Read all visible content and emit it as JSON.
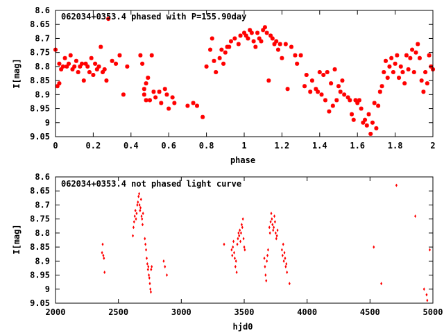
{
  "chart_data": [
    {
      "type": "scatter",
      "title": "062034+0353.4 phased with P=155.90day",
      "xlabel": "phase",
      "ylabel": "I[mag]",
      "xlim": [
        0,
        2
      ],
      "ylim": [
        8.6,
        9.05
      ],
      "y_inverted": true,
      "grid": false,
      "marker_color": "#ff0000",
      "marker": "star",
      "x_ticks": [
        0,
        0.2,
        0.4,
        0.6,
        0.8,
        1,
        1.2,
        1.4,
        1.6,
        1.8,
        2
      ],
      "x_tick_labels": [
        "0",
        "0.2",
        "0.4",
        "0.6",
        "0.8",
        "1",
        "1.2",
        "1.4",
        "1.6",
        "1.8",
        "2"
      ],
      "y_ticks": [
        8.6,
        8.65,
        8.7,
        8.75,
        8.8,
        8.85,
        8.9,
        8.95,
        9,
        9.05
      ],
      "y_tick_labels": [
        "8.6",
        "8.65",
        "8.7",
        "8.75",
        "8.8",
        "8.85",
        "8.9",
        "8.95",
        "9",
        "9.05"
      ],
      "points": [
        [
          0.0,
          8.74
        ],
        [
          0.02,
          8.79
        ],
        [
          0.01,
          8.87
        ],
        [
          0.02,
          8.86
        ],
        [
          0.03,
          8.81
        ],
        [
          0.04,
          8.8
        ],
        [
          0.05,
          8.77
        ],
        [
          0.06,
          8.8
        ],
        [
          0.07,
          8.79
        ],
        [
          0.08,
          8.76
        ],
        [
          0.09,
          8.81
        ],
        [
          0.1,
          8.8
        ],
        [
          0.11,
          8.78
        ],
        [
          0.12,
          8.82
        ],
        [
          0.13,
          8.8
        ],
        [
          0.14,
          8.79
        ],
        [
          0.15,
          8.85
        ],
        [
          0.16,
          8.79
        ],
        [
          0.17,
          8.8
        ],
        [
          0.18,
          8.82
        ],
        [
          0.19,
          8.77
        ],
        [
          0.2,
          8.83
        ],
        [
          0.21,
          8.79
        ],
        [
          0.22,
          8.81
        ],
        [
          0.23,
          8.8
        ],
        [
          0.24,
          8.73
        ],
        [
          0.25,
          8.82
        ],
        [
          0.26,
          8.81
        ],
        [
          0.27,
          8.85
        ],
        [
          0.28,
          8.63
        ],
        [
          0.3,
          8.78
        ],
        [
          0.32,
          8.79
        ],
        [
          0.34,
          8.76
        ],
        [
          0.36,
          8.9
        ],
        [
          0.38,
          8.8
        ],
        [
          0.45,
          8.76
        ],
        [
          0.46,
          8.79
        ],
        [
          0.47,
          8.88
        ],
        [
          0.47,
          8.9
        ],
        [
          0.48,
          8.86
        ],
        [
          0.49,
          8.84
        ],
        [
          0.5,
          8.92
        ],
        [
          0.48,
          8.92
        ],
        [
          0.51,
          8.76
        ],
        [
          0.52,
          8.89
        ],
        [
          0.53,
          8.91
        ],
        [
          0.55,
          8.89
        ],
        [
          0.56,
          8.93
        ],
        [
          0.58,
          8.88
        ],
        [
          0.59,
          8.9
        ],
        [
          0.6,
          8.95
        ],
        [
          0.62,
          8.91
        ],
        [
          0.63,
          8.93
        ],
        [
          0.7,
          8.94
        ],
        [
          0.73,
          8.93
        ],
        [
          0.75,
          8.94
        ],
        [
          0.78,
          8.98
        ],
        [
          0.8,
          8.8
        ],
        [
          0.82,
          8.74
        ],
        [
          0.83,
          8.7
        ],
        [
          0.84,
          8.78
        ],
        [
          0.85,
          8.82
        ],
        [
          0.87,
          8.77
        ],
        [
          0.88,
          8.74
        ],
        [
          0.89,
          8.79
        ],
        [
          0.9,
          8.75
        ],
        [
          0.91,
          8.73
        ],
        [
          0.92,
          8.73
        ],
        [
          0.93,
          8.71
        ],
        [
          0.95,
          8.7
        ],
        [
          0.97,
          8.72
        ],
        [
          0.98,
          8.69
        ],
        [
          1.0,
          8.68
        ],
        [
          1.01,
          8.69
        ],
        [
          1.02,
          8.7
        ],
        [
          1.03,
          8.67
        ],
        [
          1.04,
          8.68
        ],
        [
          1.05,
          8.71
        ],
        [
          1.06,
          8.73
        ],
        [
          1.07,
          8.68
        ],
        [
          1.08,
          8.7
        ],
        [
          1.09,
          8.71
        ],
        [
          1.1,
          8.67
        ],
        [
          1.11,
          8.66
        ],
        [
          1.12,
          8.68
        ],
        [
          1.13,
          8.85
        ],
        [
          1.14,
          8.69
        ],
        [
          1.15,
          8.7
        ],
        [
          1.16,
          8.72
        ],
        [
          1.17,
          8.71
        ],
        [
          1.18,
          8.74
        ],
        [
          1.19,
          8.72
        ],
        [
          1.2,
          8.77
        ],
        [
          1.22,
          8.72
        ],
        [
          1.23,
          8.88
        ],
        [
          1.25,
          8.73
        ],
        [
          1.27,
          8.76
        ],
        [
          1.28,
          8.79
        ],
        [
          1.3,
          8.76
        ],
        [
          1.32,
          8.87
        ],
        [
          1.33,
          8.83
        ],
        [
          1.35,
          8.89
        ],
        [
          1.36,
          8.85
        ],
        [
          1.38,
          8.88
        ],
        [
          1.39,
          8.89
        ],
        [
          1.4,
          8.82
        ],
        [
          1.41,
          8.9
        ],
        [
          1.42,
          8.83
        ],
        [
          1.43,
          8.92
        ],
        [
          1.44,
          8.82
        ],
        [
          1.45,
          8.96
        ],
        [
          1.46,
          8.86
        ],
        [
          1.47,
          8.94
        ],
        [
          1.48,
          8.81
        ],
        [
          1.49,
          8.92
        ],
        [
          1.5,
          8.87
        ],
        [
          1.51,
          8.89
        ],
        [
          1.52,
          8.85
        ],
        [
          1.53,
          8.9
        ],
        [
          1.55,
          8.91
        ],
        [
          1.56,
          8.92
        ],
        [
          1.57,
          8.97
        ],
        [
          1.58,
          8.99
        ],
        [
          1.59,
          8.92
        ],
        [
          1.6,
          8.93
        ],
        [
          1.61,
          8.92
        ],
        [
          1.62,
          8.95
        ],
        [
          1.63,
          9.0
        ],
        [
          1.64,
          8.99
        ],
        [
          1.65,
          9.01
        ],
        [
          1.66,
          8.97
        ],
        [
          1.67,
          9.04
        ],
        [
          1.68,
          9.0
        ],
        [
          1.69,
          8.93
        ],
        [
          1.7,
          9.02
        ],
        [
          1.71,
          8.94
        ],
        [
          1.72,
          8.89
        ],
        [
          1.73,
          8.87
        ],
        [
          1.74,
          8.82
        ],
        [
          1.75,
          8.78
        ],
        [
          1.76,
          8.84
        ],
        [
          1.77,
          8.8
        ],
        [
          1.78,
          8.77
        ],
        [
          1.79,
          8.82
        ],
        [
          1.8,
          8.79
        ],
        [
          1.81,
          8.76
        ],
        [
          1.82,
          8.84
        ],
        [
          1.83,
          8.8
        ],
        [
          1.84,
          8.82
        ],
        [
          1.85,
          8.86
        ],
        [
          1.86,
          8.76
        ],
        [
          1.87,
          8.81
        ],
        [
          1.88,
          8.77
        ],
        [
          1.89,
          8.74
        ],
        [
          1.9,
          8.82
        ],
        [
          1.91,
          8.75
        ],
        [
          1.92,
          8.72
        ],
        [
          1.93,
          8.77
        ],
        [
          1.94,
          8.85
        ],
        [
          1.95,
          8.89
        ],
        [
          1.96,
          8.82
        ],
        [
          1.97,
          8.86
        ],
        [
          1.98,
          8.76
        ],
        [
          1.99,
          8.8
        ],
        [
          2.0,
          8.81
        ]
      ]
    },
    {
      "type": "scatter",
      "title": "062034+0353.4 not phased light curve",
      "xlabel": "hjd0",
      "ylabel": "I[mag]",
      "xlim": [
        2000,
        5000
      ],
      "ylim": [
        8.6,
        9.05
      ],
      "y_inverted": true,
      "grid": false,
      "marker_color": "#ff0000",
      "marker": "diamond",
      "x_ticks": [
        2000,
        2500,
        3000,
        3500,
        4000,
        4500,
        5000
      ],
      "x_tick_labels": [
        "2000",
        "2500",
        "3000",
        "3500",
        "4000",
        "4500",
        "5000"
      ],
      "y_ticks": [
        8.6,
        8.65,
        8.7,
        8.75,
        8.8,
        8.85,
        8.9,
        8.95,
        9,
        9.05
      ],
      "y_tick_labels": [
        "8.6",
        "8.65",
        "8.7",
        "8.75",
        "8.8",
        "8.85",
        "8.9",
        "8.95",
        "9",
        "9.05"
      ],
      "points": [
        [
          2370,
          8.87
        ],
        [
          2375,
          8.84
        ],
        [
          2380,
          8.88
        ],
        [
          2385,
          8.89
        ],
        [
          2390,
          8.94
        ],
        [
          2615,
          8.81
        ],
        [
          2620,
          8.78
        ],
        [
          2625,
          8.76
        ],
        [
          2630,
          8.74
        ],
        [
          2635,
          8.72
        ],
        [
          2640,
          8.75
        ],
        [
          2645,
          8.73
        ],
        [
          2650,
          8.7
        ],
        [
          2655,
          8.69
        ],
        [
          2660,
          8.67
        ],
        [
          2665,
          8.66
        ],
        [
          2668,
          8.7
        ],
        [
          2672,
          8.72
        ],
        [
          2676,
          8.71
        ],
        [
          2680,
          8.68
        ],
        [
          2684,
          8.74
        ],
        [
          2688,
          8.75
        ],
        [
          2692,
          8.77
        ],
        [
          2696,
          8.73
        ],
        [
          2710,
          8.82
        ],
        [
          2715,
          8.84
        ],
        [
          2720,
          8.86
        ],
        [
          2725,
          8.89
        ],
        [
          2730,
          8.91
        ],
        [
          2735,
          8.93
        ],
        [
          2738,
          8.92
        ],
        [
          2742,
          8.95
        ],
        [
          2746,
          8.96
        ],
        [
          2750,
          8.98
        ],
        [
          2754,
          9.0
        ],
        [
          2758,
          9.01
        ],
        [
          2760,
          8.93
        ],
        [
          2765,
          8.92
        ],
        [
          2860,
          8.9
        ],
        [
          2870,
          8.92
        ],
        [
          2885,
          8.95
        ],
        [
          3340,
          8.84
        ],
        [
          3400,
          8.86
        ],
        [
          3405,
          8.88
        ],
        [
          3410,
          8.85
        ],
        [
          3415,
          8.83
        ],
        [
          3420,
          8.87
        ],
        [
          3425,
          8.89
        ],
        [
          3430,
          8.92
        ],
        [
          3435,
          8.9
        ],
        [
          3440,
          8.94
        ],
        [
          3445,
          8.84
        ],
        [
          3450,
          8.82
        ],
        [
          3455,
          8.8
        ],
        [
          3460,
          8.81
        ],
        [
          3465,
          8.79
        ],
        [
          3470,
          8.83
        ],
        [
          3475,
          8.8
        ],
        [
          3480,
          8.77
        ],
        [
          3485,
          8.78
        ],
        [
          3490,
          8.75
        ],
        [
          3495,
          8.82
        ],
        [
          3500,
          8.85
        ],
        [
          3505,
          8.86
        ],
        [
          3660,
          8.89
        ],
        [
          3665,
          8.92
        ],
        [
          3670,
          8.95
        ],
        [
          3675,
          8.97
        ],
        [
          3680,
          8.9
        ],
        [
          3685,
          8.88
        ],
        [
          3690,
          8.86
        ],
        [
          3700,
          8.78
        ],
        [
          3705,
          8.8
        ],
        [
          3710,
          8.76
        ],
        [
          3715,
          8.73
        ],
        [
          3720,
          8.75
        ],
        [
          3725,
          8.77
        ],
        [
          3730,
          8.79
        ],
        [
          3735,
          8.78
        ],
        [
          3740,
          8.74
        ],
        [
          3745,
          8.76
        ],
        [
          3750,
          8.8
        ],
        [
          3755,
          8.82
        ],
        [
          3760,
          8.81
        ],
        [
          3765,
          8.79
        ],
        [
          3800,
          8.86
        ],
        [
          3805,
          8.88
        ],
        [
          3810,
          8.84
        ],
        [
          3815,
          8.9
        ],
        [
          3820,
          8.87
        ],
        [
          3825,
          8.89
        ],
        [
          3830,
          8.92
        ],
        [
          3835,
          8.91
        ],
        [
          3840,
          8.94
        ],
        [
          3860,
          8.98
        ],
        [
          4530,
          8.85
        ],
        [
          4590,
          8.98
        ],
        [
          4710,
          8.63
        ],
        [
          4860,
          8.74
        ],
        [
          4930,
          9.0
        ],
        [
          4950,
          9.02
        ],
        [
          4955,
          9.04
        ],
        [
          4975,
          8.86
        ]
      ]
    }
  ]
}
